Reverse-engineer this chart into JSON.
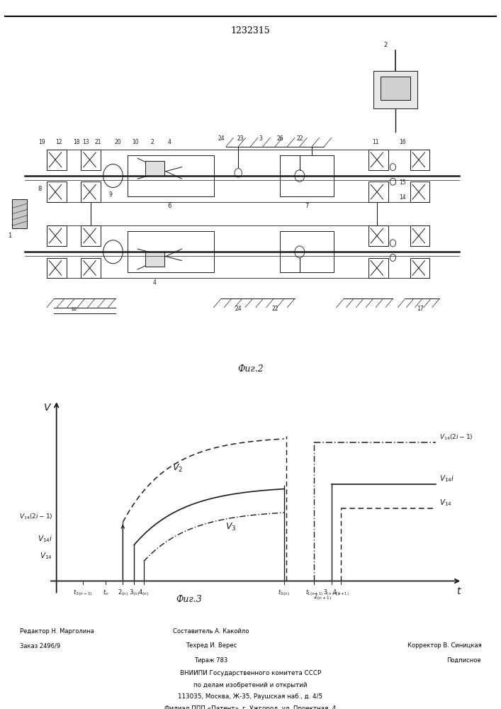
{
  "patent_number": "1232315",
  "fig2_label": "Фиг.2",
  "fig3_label": "Фиг.3",
  "bg_color": "#f5f5f0",
  "line_color": "#1a1a1a",
  "footer": {
    "col1": [
      "Редактор Н. Марголина",
      "Заказ 2496/9"
    ],
    "col2": [
      "Составитель А. Какойло",
      "Техред И. Верес",
      "Тираж 783",
      "ВНИИПИ Государственного комитета СССР",
      "по делам изобретений и открытий",
      "113035, Москва, Ж-35, Раушская наб., д. 4/5",
      "Филиал ППП «Патент», г. Ужгород, ул. Проектная, 4"
    ],
    "col3": [
      "Корректор В. Синицкая",
      "Подписное"
    ]
  }
}
